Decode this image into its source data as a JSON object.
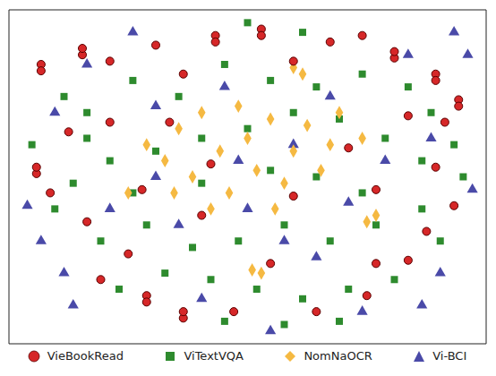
{
  "chart_data": {
    "type": "scatter",
    "xlim": [
      -2,
      102
    ],
    "ylim": [
      -2,
      102
    ],
    "tick_labels": false,
    "legend": "bottom",
    "series": [
      {
        "name": "VieBookRead",
        "color": "#d62728",
        "marker": "circle",
        "x": [
          5,
          14,
          20,
          30,
          36,
          43,
          53,
          60,
          68,
          75,
          82,
          91,
          96,
          93,
          85,
          4,
          7,
          15,
          24,
          28,
          36,
          47,
          65,
          76,
          85,
          95,
          91,
          78,
          27,
          42,
          60,
          55,
          40,
          72,
          33,
          20,
          11,
          89,
          78,
          18,
          5,
          14,
          53,
          91,
          96,
          28,
          4,
          43,
          82,
          36
        ],
        "y": [
          85,
          88,
          86,
          91,
          82,
          94,
          96,
          86,
          92,
          94,
          87,
          82,
          74,
          67,
          69,
          51,
          45,
          36,
          26,
          13,
          6,
          8,
          8,
          13,
          24,
          41,
          53,
          46,
          46,
          54,
          44,
          23,
          38,
          59,
          67,
          67,
          64,
          33,
          23,
          18,
          83,
          90,
          94,
          80,
          72,
          11,
          53,
          92,
          89,
          8
        ]
      },
      {
        "name": "ViTextVQA",
        "color": "#2e8b2e",
        "marker": "square",
        "x": [
          10,
          15,
          25,
          35,
          45,
          55,
          65,
          75,
          85,
          90,
          95,
          88,
          80,
          70,
          60,
          50,
          40,
          30,
          20,
          12,
          8,
          18,
          28,
          38,
          48,
          58,
          68,
          78,
          88,
          92,
          82,
          72,
          62,
          52,
          42,
          32,
          22,
          50,
          62,
          40,
          55,
          65,
          75,
          25,
          15,
          3,
          97,
          45,
          58,
          70
        ],
        "y": [
          75,
          70,
          80,
          75,
          85,
          80,
          78,
          82,
          78,
          70,
          60,
          55,
          62,
          68,
          70,
          65,
          62,
          58,
          55,
          48,
          40,
          30,
          35,
          28,
          30,
          35,
          30,
          35,
          40,
          30,
          18,
          15,
          12,
          15,
          18,
          20,
          15,
          98,
          95,
          48,
          52,
          50,
          45,
          45,
          62,
          60,
          50,
          5,
          4,
          5
        ]
      },
      {
        "name": "NomNaOCR",
        "color": "#f5b942",
        "marker": "diamond",
        "x": [
          28,
          32,
          35,
          38,
          40,
          44,
          46,
          50,
          52,
          55,
          58,
          60,
          63,
          66,
          68,
          70,
          34,
          48,
          56,
          42,
          62,
          60,
          76,
          78,
          53,
          51,
          24,
          75
        ],
        "y": [
          60,
          55,
          65,
          50,
          70,
          58,
          45,
          62,
          52,
          68,
          48,
          58,
          66,
          52,
          60,
          70,
          45,
          72,
          40,
          40,
          82,
          84,
          36,
          38,
          20,
          21,
          45,
          62
        ]
      },
      {
        "name": "Vi-BCI",
        "color": "#4a4aa8",
        "marker": "triangle",
        "x": [
          95,
          98,
          99,
          2,
          55,
          88,
          10,
          5,
          15,
          30,
          45,
          60,
          72,
          50,
          35,
          20,
          65,
          80,
          85,
          25,
          40,
          75,
          92,
          8,
          68,
          48,
          58,
          30,
          90,
          12
        ],
        "y": [
          95,
          88,
          46,
          41,
          2,
          10,
          20,
          30,
          85,
          72,
          78,
          60,
          42,
          40,
          35,
          40,
          25,
          55,
          88,
          95,
          12,
          8,
          20,
          70,
          75,
          55,
          30,
          50,
          62,
          10
        ]
      }
    ]
  }
}
